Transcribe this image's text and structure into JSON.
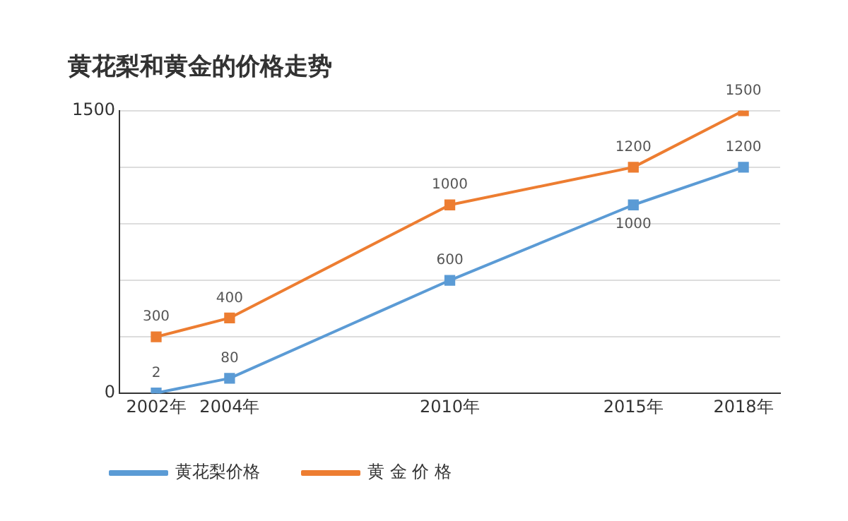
{
  "chart_data": {
    "type": "line",
    "title": "黄花梨和黄金的价格走势",
    "x": [
      2002,
      2004,
      2010,
      2015,
      2018
    ],
    "xlim": [
      2001,
      2019
    ],
    "xticks": [
      {
        "value": 2002,
        "label": "2002年"
      },
      {
        "value": 2004,
        "label": "2004年"
      },
      {
        "value": 2010,
        "label": "2010年"
      },
      {
        "value": 2015,
        "label": "2015年"
      },
      {
        "value": 2018,
        "label": "2018年"
      }
    ],
    "ylim": [
      0,
      1500
    ],
    "yticks": [
      0,
      {
        "value": 300,
        "label": null
      },
      {
        "value": 600,
        "label": null
      },
      {
        "value": 900,
        "label": null
      },
      {
        "value": 1200,
        "label": null
      },
      1500
    ],
    "series": [
      {
        "name": "黄花梨价格",
        "color": "#5b9bd5",
        "values": [
          2,
          80,
          600,
          1000,
          1200
        ]
      },
      {
        "name": "黄 金 价 格",
        "color": "#ed7d31",
        "values": [
          300,
          400,
          1000,
          1200,
          1500
        ]
      }
    ],
    "data_labels": true,
    "grid": "y",
    "legend": "bottom left",
    "marker": "square",
    "line_style": "solid"
  }
}
